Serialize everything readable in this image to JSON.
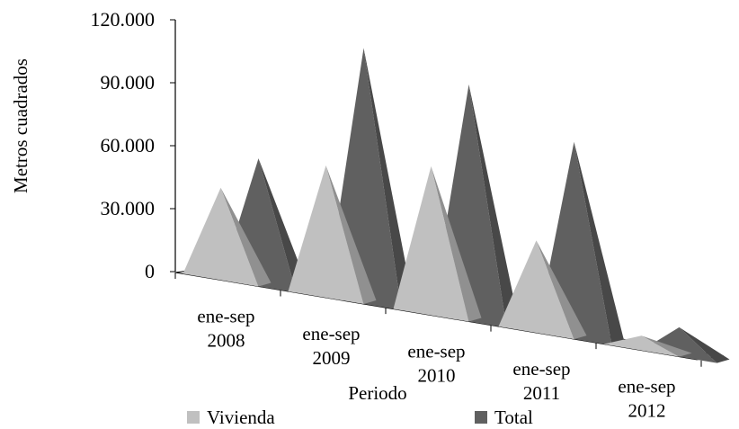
{
  "chart_data": {
    "type": "bar",
    "subtype": "3d-pyramid",
    "categories": [
      [
        "ene-sep",
        "2008"
      ],
      [
        "ene-sep",
        "2009"
      ],
      [
        "ene-sep",
        "2010"
      ],
      [
        "ene-sep",
        "2011"
      ],
      [
        "ene-sep",
        "2012"
      ]
    ],
    "series": [
      {
        "name": "Vivienda",
        "values": [
          44000,
          63000,
          71000,
          44000,
          7000
        ],
        "color": "#c0c0c0"
      },
      {
        "name": "Total",
        "values": [
          61000,
          122000,
          113000,
          94000,
          14000
        ],
        "color": "#606060"
      }
    ],
    "xlabel": "Periodo",
    "ylabel": "Metros cuadrados",
    "ylim": [
      0,
      120000
    ],
    "yticks": [
      0,
      30000,
      60000,
      90000,
      120000
    ],
    "ytick_labels": [
      "0",
      "30.000",
      "60.000",
      "90.000",
      "120.000"
    ],
    "legend": {
      "position": "bottom"
    },
    "grid": false
  }
}
